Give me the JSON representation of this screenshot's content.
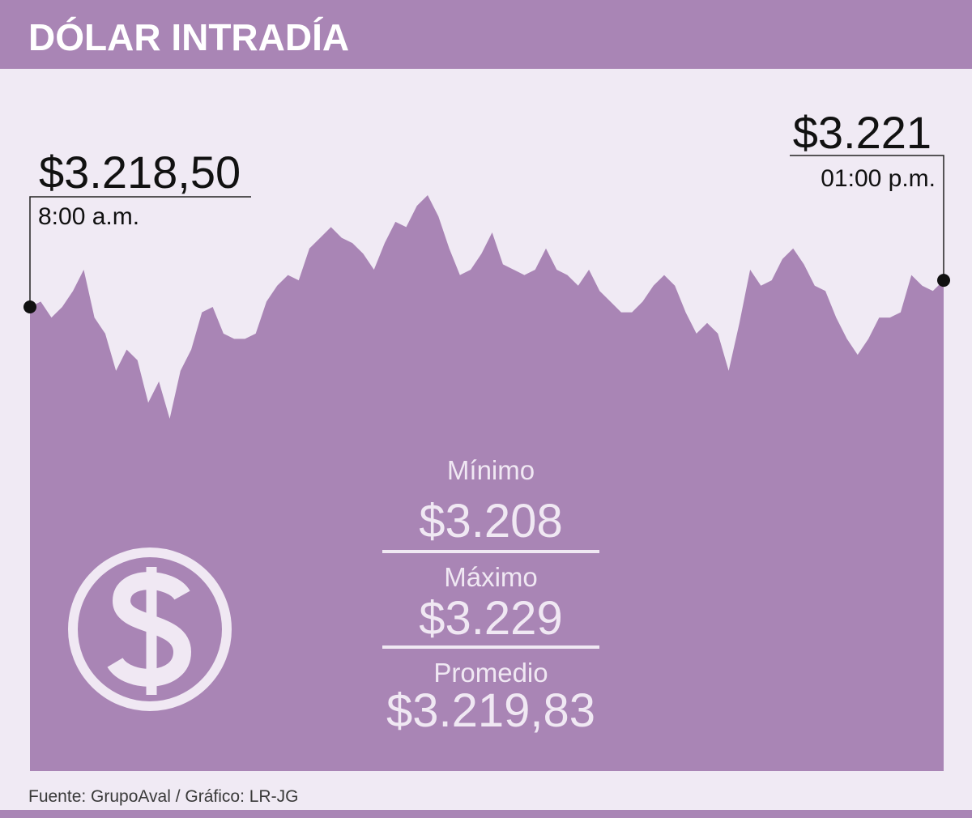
{
  "chart_data": {
    "type": "area",
    "title": "DÓLAR INTRADÍA",
    "color": "#a985b5",
    "values": [
      3218.5,
      3219,
      3217.5,
      3218.5,
      3220,
      3222,
      3217.5,
      3216,
      3212.5,
      3214.5,
      3213.5,
      3209.5,
      3211.5,
      3208,
      3212.5,
      3214.5,
      3218,
      3218.5,
      3216,
      3215.5,
      3215.5,
      3216,
      3219,
      3220.5,
      3221.5,
      3221,
      3224,
      3225,
      3226,
      3225,
      3224.5,
      3223.5,
      3222,
      3224.5,
      3226.5,
      3226,
      3228,
      3229,
      3227,
      3224,
      3221.5,
      3222,
      3223.5,
      3225.5,
      3222.5,
      3222,
      3221.5,
      3222,
      3224,
      3222,
      3221.5,
      3220.5,
      3222,
      3220,
      3219,
      3218,
      3218,
      3219,
      3220.5,
      3221.5,
      3220.5,
      3218,
      3216,
      3217,
      3216,
      3212.5,
      3217,
      3222,
      3220.5,
      3221,
      3223,
      3224,
      3222.5,
      3220.5,
      3220,
      3217.5,
      3215.5,
      3214,
      3215.5,
      3217.5,
      3217.5,
      3218,
      3221.5,
      3220.5,
      3220,
      3221
    ],
    "annotations": [
      {
        "value": 3218.5,
        "label": "$3.218,50",
        "time": "8:00 a.m."
      },
      {
        "value": 3221,
        "label": "$3.221",
        "time": "01:00 p.m."
      }
    ],
    "stats": [
      {
        "label": "Mínimo",
        "value": 3208,
        "value_label": "$3.208"
      },
      {
        "label": "Máximo",
        "value": 3229,
        "value_label": "$3.229"
      },
      {
        "label": "Promedio",
        "value": 3219.83,
        "value_label": "$3.219,83"
      }
    ],
    "source": "Fuente:  GrupoAval  / Gráfico: LR-JG"
  }
}
